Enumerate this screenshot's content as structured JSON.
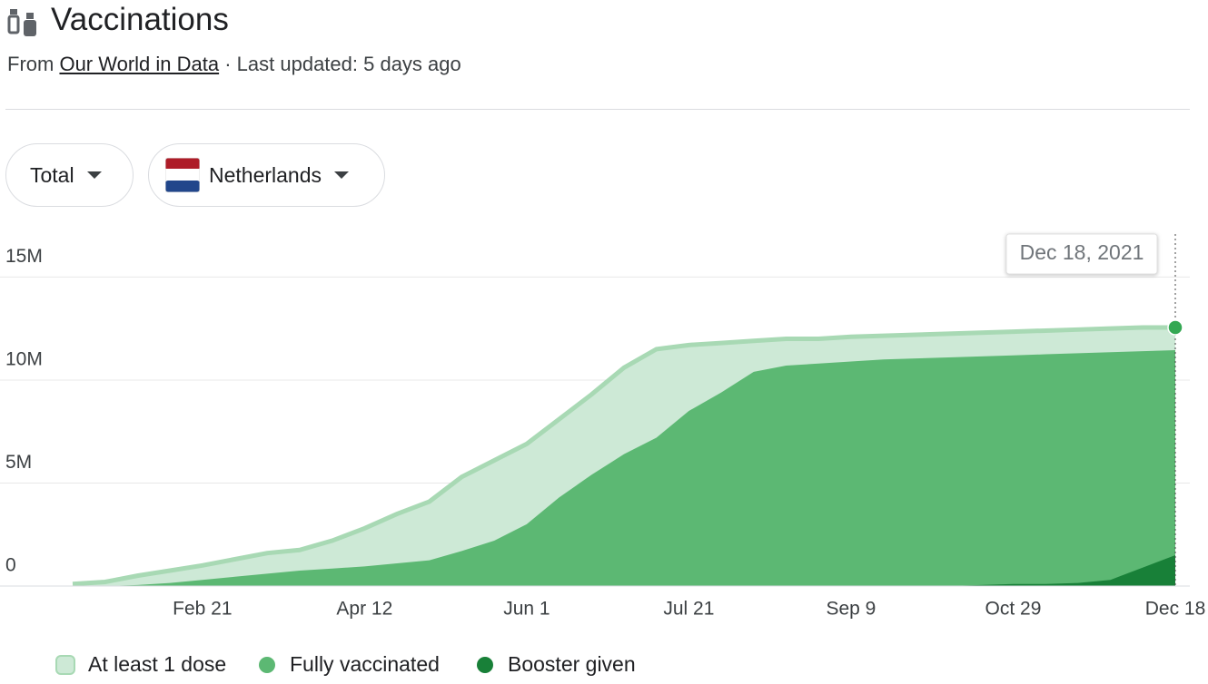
{
  "header": {
    "title": "Vaccinations",
    "source_prefix": "From",
    "source_link": "Our World in Data",
    "updated": "· Last updated: 5 days ago"
  },
  "filters": {
    "measure": "Total",
    "country": "Netherlands"
  },
  "chart_data": {
    "type": "area",
    "tooltip": "Dec 18, 2021",
    "categories": [
      null,
      null,
      null,
      null,
      "Feb 21",
      null,
      null,
      null,
      null,
      "Apr 12",
      null,
      null,
      null,
      null,
      "Jun 1",
      null,
      null,
      null,
      null,
      "Jul 21",
      null,
      null,
      null,
      null,
      "Sep 9",
      null,
      null,
      null,
      null,
      "Oct 29",
      null,
      null,
      null,
      null,
      "Dec 18"
    ],
    "ylim": [
      0,
      17000000
    ],
    "yticks": [
      0,
      {
        "value": 5000000,
        "label": "5M"
      },
      {
        "value": 10000000,
        "label": "10M"
      },
      {
        "value": 15000000,
        "label": "15M"
      }
    ],
    "grid": true,
    "series": [
      {
        "name": "At least 1 dose",
        "color": "#cde9d6",
        "line_color": "#a8d9b4",
        "values": [
          100000,
          200000,
          500000,
          750000,
          1000000,
          1300000,
          1600000,
          1750000,
          2200000,
          2800000,
          3500000,
          4100000,
          5300000,
          6100000,
          6900000,
          8100000,
          9300000,
          10600000,
          11500000,
          11700000,
          11800000,
          11900000,
          12000000,
          12000000,
          12100000,
          12150000,
          12200000,
          12250000,
          12300000,
          12350000,
          12400000,
          12450000,
          12500000,
          12550000,
          12550000
        ]
      },
      {
        "name": "Fully vaccinated",
        "color": "#5cb873",
        "values": [
          0,
          0,
          50000,
          150000,
          300000,
          450000,
          600000,
          750000,
          850000,
          950000,
          1100000,
          1250000,
          1700000,
          2200000,
          3000000,
          4300000,
          5400000,
          6400000,
          7200000,
          8500000,
          9400000,
          10400000,
          10700000,
          10800000,
          10900000,
          11000000,
          11050000,
          11100000,
          11150000,
          11200000,
          11250000,
          11300000,
          11350000,
          11400000,
          11450000
        ]
      },
      {
        "name": "Booster given",
        "color": "#188038",
        "values": [
          0,
          0,
          0,
          0,
          0,
          0,
          0,
          0,
          0,
          0,
          0,
          0,
          0,
          0,
          0,
          0,
          0,
          0,
          0,
          0,
          0,
          0,
          0,
          0,
          0,
          0,
          0,
          0,
          50000,
          100000,
          100000,
          150000,
          300000,
          900000,
          1500000
        ]
      }
    ]
  }
}
